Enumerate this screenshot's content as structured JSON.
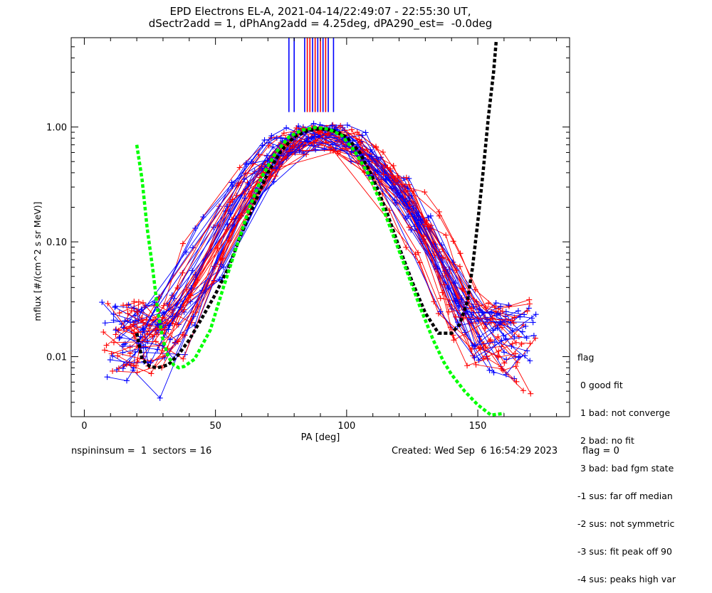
{
  "chart_data": {
    "type": "line",
    "title": "EPD Electrons EL-A, 2021-04-14/22:49:07 - 22:55:30 UT,",
    "subtitle": "dSectr2add = 1, dPhAng2add = 4.25deg, dPA290_est=  -0.0deg",
    "xlabel": "PA [deg]",
    "ylabel": "mflux [#/(cm^2 s sr MeV)]",
    "xlim": [
      -5,
      185
    ],
    "ylim": [
      0.003,
      6
    ],
    "yscale": "log",
    "x_ticks": [
      0,
      50,
      100,
      150
    ],
    "y_ticks": [
      0.01,
      0.1,
      1.0
    ],
    "y_tick_labels": [
      "0.01",
      "0.10",
      "1.00"
    ],
    "series": [
      {
        "name": "fit-dn (black dotted)",
        "color": "#000000",
        "x": [
          20,
          22,
          25,
          28,
          32,
          36,
          40,
          45,
          50,
          55,
          60,
          65,
          70,
          75,
          80,
          85,
          90,
          95,
          100,
          105,
          110,
          115,
          120,
          125,
          130,
          135,
          140,
          143,
          146,
          148,
          150,
          152,
          154,
          156,
          157
        ],
        "y": [
          0.016,
          0.0095,
          0.0082,
          0.008,
          0.0085,
          0.0105,
          0.014,
          0.022,
          0.035,
          0.06,
          0.12,
          0.22,
          0.4,
          0.62,
          0.82,
          0.93,
          0.97,
          0.93,
          0.82,
          0.6,
          0.36,
          0.19,
          0.09,
          0.045,
          0.024,
          0.016,
          0.016,
          0.019,
          0.03,
          0.06,
          0.15,
          0.4,
          1.2,
          3.0,
          5.5
        ]
      },
      {
        "name": "fit-up (green dotted)",
        "color": "#00ff00",
        "x": [
          20,
          22,
          24,
          26,
          28,
          30,
          32,
          34,
          36,
          38,
          42,
          48,
          53,
          58,
          63,
          68,
          73,
          78,
          83,
          88,
          93,
          98,
          103,
          108,
          113,
          118,
          123,
          128,
          133,
          137,
          140,
          145,
          150,
          155,
          160
        ],
        "y": [
          0.7,
          0.35,
          0.13,
          0.06,
          0.025,
          0.014,
          0.01,
          0.0085,
          0.008,
          0.0082,
          0.0095,
          0.017,
          0.04,
          0.09,
          0.2,
          0.38,
          0.6,
          0.82,
          0.94,
          0.99,
          0.96,
          0.85,
          0.62,
          0.4,
          0.22,
          0.11,
          0.055,
          0.027,
          0.014,
          0.009,
          0.007,
          0.005,
          0.0038,
          0.0031,
          0.0032
        ]
      }
    ],
    "legend": {
      "title": "flag",
      "entries": [
        " 0 good fit",
        " 1 bad: not converge",
        " 2 bad: no fit",
        " 3 bad: bad fgm state",
        "-1 sus: far off median",
        "-2 sus: not symmetric",
        "-3 sus: fit peak off 90",
        "-4 sus: peaks high var"
      ],
      "placement": "right"
    },
    "vertical_lines": [
      {
        "x": 78,
        "color": "#0000ff"
      },
      {
        "x": 80,
        "color": "#0000ff"
      },
      {
        "x": 84,
        "color": "#0000ff"
      },
      {
        "x": 85,
        "color": "#ff0000"
      },
      {
        "x": 86,
        "color": "#ff0000"
      },
      {
        "x": 87,
        "color": "#0000ff"
      },
      {
        "x": 88,
        "color": "#ff0000"
      },
      {
        "x": 89,
        "color": "#0000ff"
      },
      {
        "x": 90,
        "color": "#ff0000"
      },
      {
        "x": 91,
        "color": "#0000ff"
      },
      {
        "x": 92,
        "color": "#ff0000"
      },
      {
        "x": 93,
        "color": "#0000ff"
      },
      {
        "x": 95,
        "color": "#0000ff"
      }
    ]
  },
  "footer": {
    "left": "nspininsum =  1  sectors = 16",
    "created": "Created: Wed Sep  6 16:54:29 2023",
    "flag": "flag = 0"
  }
}
